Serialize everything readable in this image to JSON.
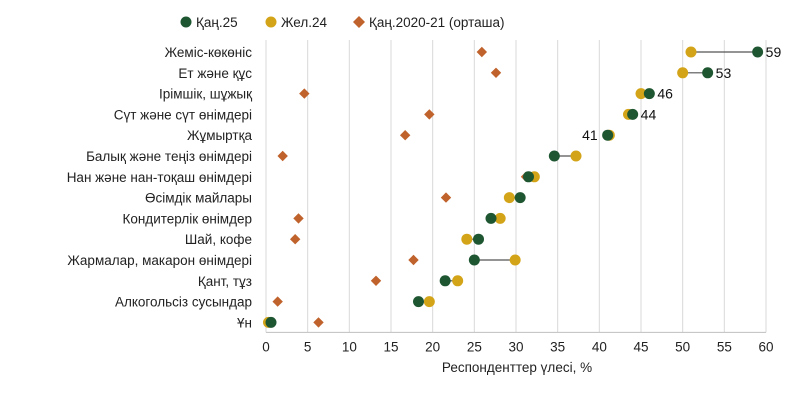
{
  "chart_data": {
    "type": "scatter",
    "xlabel": "Респонденттер үлесі, %",
    "ylabel": "",
    "xlim": [
      0,
      60
    ],
    "xticks": [
      0,
      5,
      10,
      15,
      20,
      25,
      30,
      35,
      40,
      45,
      50,
      55,
      60
    ],
    "grid": "vertical",
    "legend_position": "top",
    "categories": [
      "Жеміс-көкөніс",
      "Ет және құс",
      "Ірімшік, шұжық",
      "Сүт және сүт өнімдері",
      "Жұмыртқа",
      "Балық және теңіз өнімдері",
      "Нан және нан-тоқаш өнімдері",
      "Өсімдік майлары",
      "Кондитерлік өнімдер",
      "Шай, кофе",
      "Жармалар, макарон өнімдері",
      "Қант, тұз",
      "Алкогольсіз сусындар",
      "Ұн"
    ],
    "series": [
      {
        "name": "Қаң.25",
        "marker": "circle",
        "color": "#1e5631",
        "values": [
          59,
          53,
          46,
          44,
          41,
          34.6,
          31.5,
          30.5,
          27,
          25.5,
          25,
          21.5,
          18.3,
          0.6
        ]
      },
      {
        "name": "Жел.24",
        "marker": "circle",
        "color": "#d4a418",
        "values": [
          51,
          50,
          45,
          43.5,
          41.2,
          37.2,
          32.2,
          29.2,
          28.1,
          24.1,
          29.9,
          23,
          19.6,
          0.3
        ]
      },
      {
        "name": "Қаң.2020-21 (орташа)",
        "marker": "diamond",
        "color": "#c0622b",
        "values": [
          25.9,
          27.6,
          4.6,
          19.6,
          16.7,
          2,
          31.2,
          21.6,
          3.9,
          3.5,
          17.7,
          13.2,
          1.4,
          6.3
        ]
      }
    ],
    "data_labels": [
      {
        "category": "Жеміс-көкөніс",
        "text": "59"
      },
      {
        "category": "Ет және құс",
        "text": "53"
      },
      {
        "category": "Ірімшік, шұжық",
        "text": "46"
      },
      {
        "category": "Сүт және сүт өнімдері",
        "text": "44"
      },
      {
        "category": "Жұмыртқа",
        "text": "41"
      }
    ]
  }
}
